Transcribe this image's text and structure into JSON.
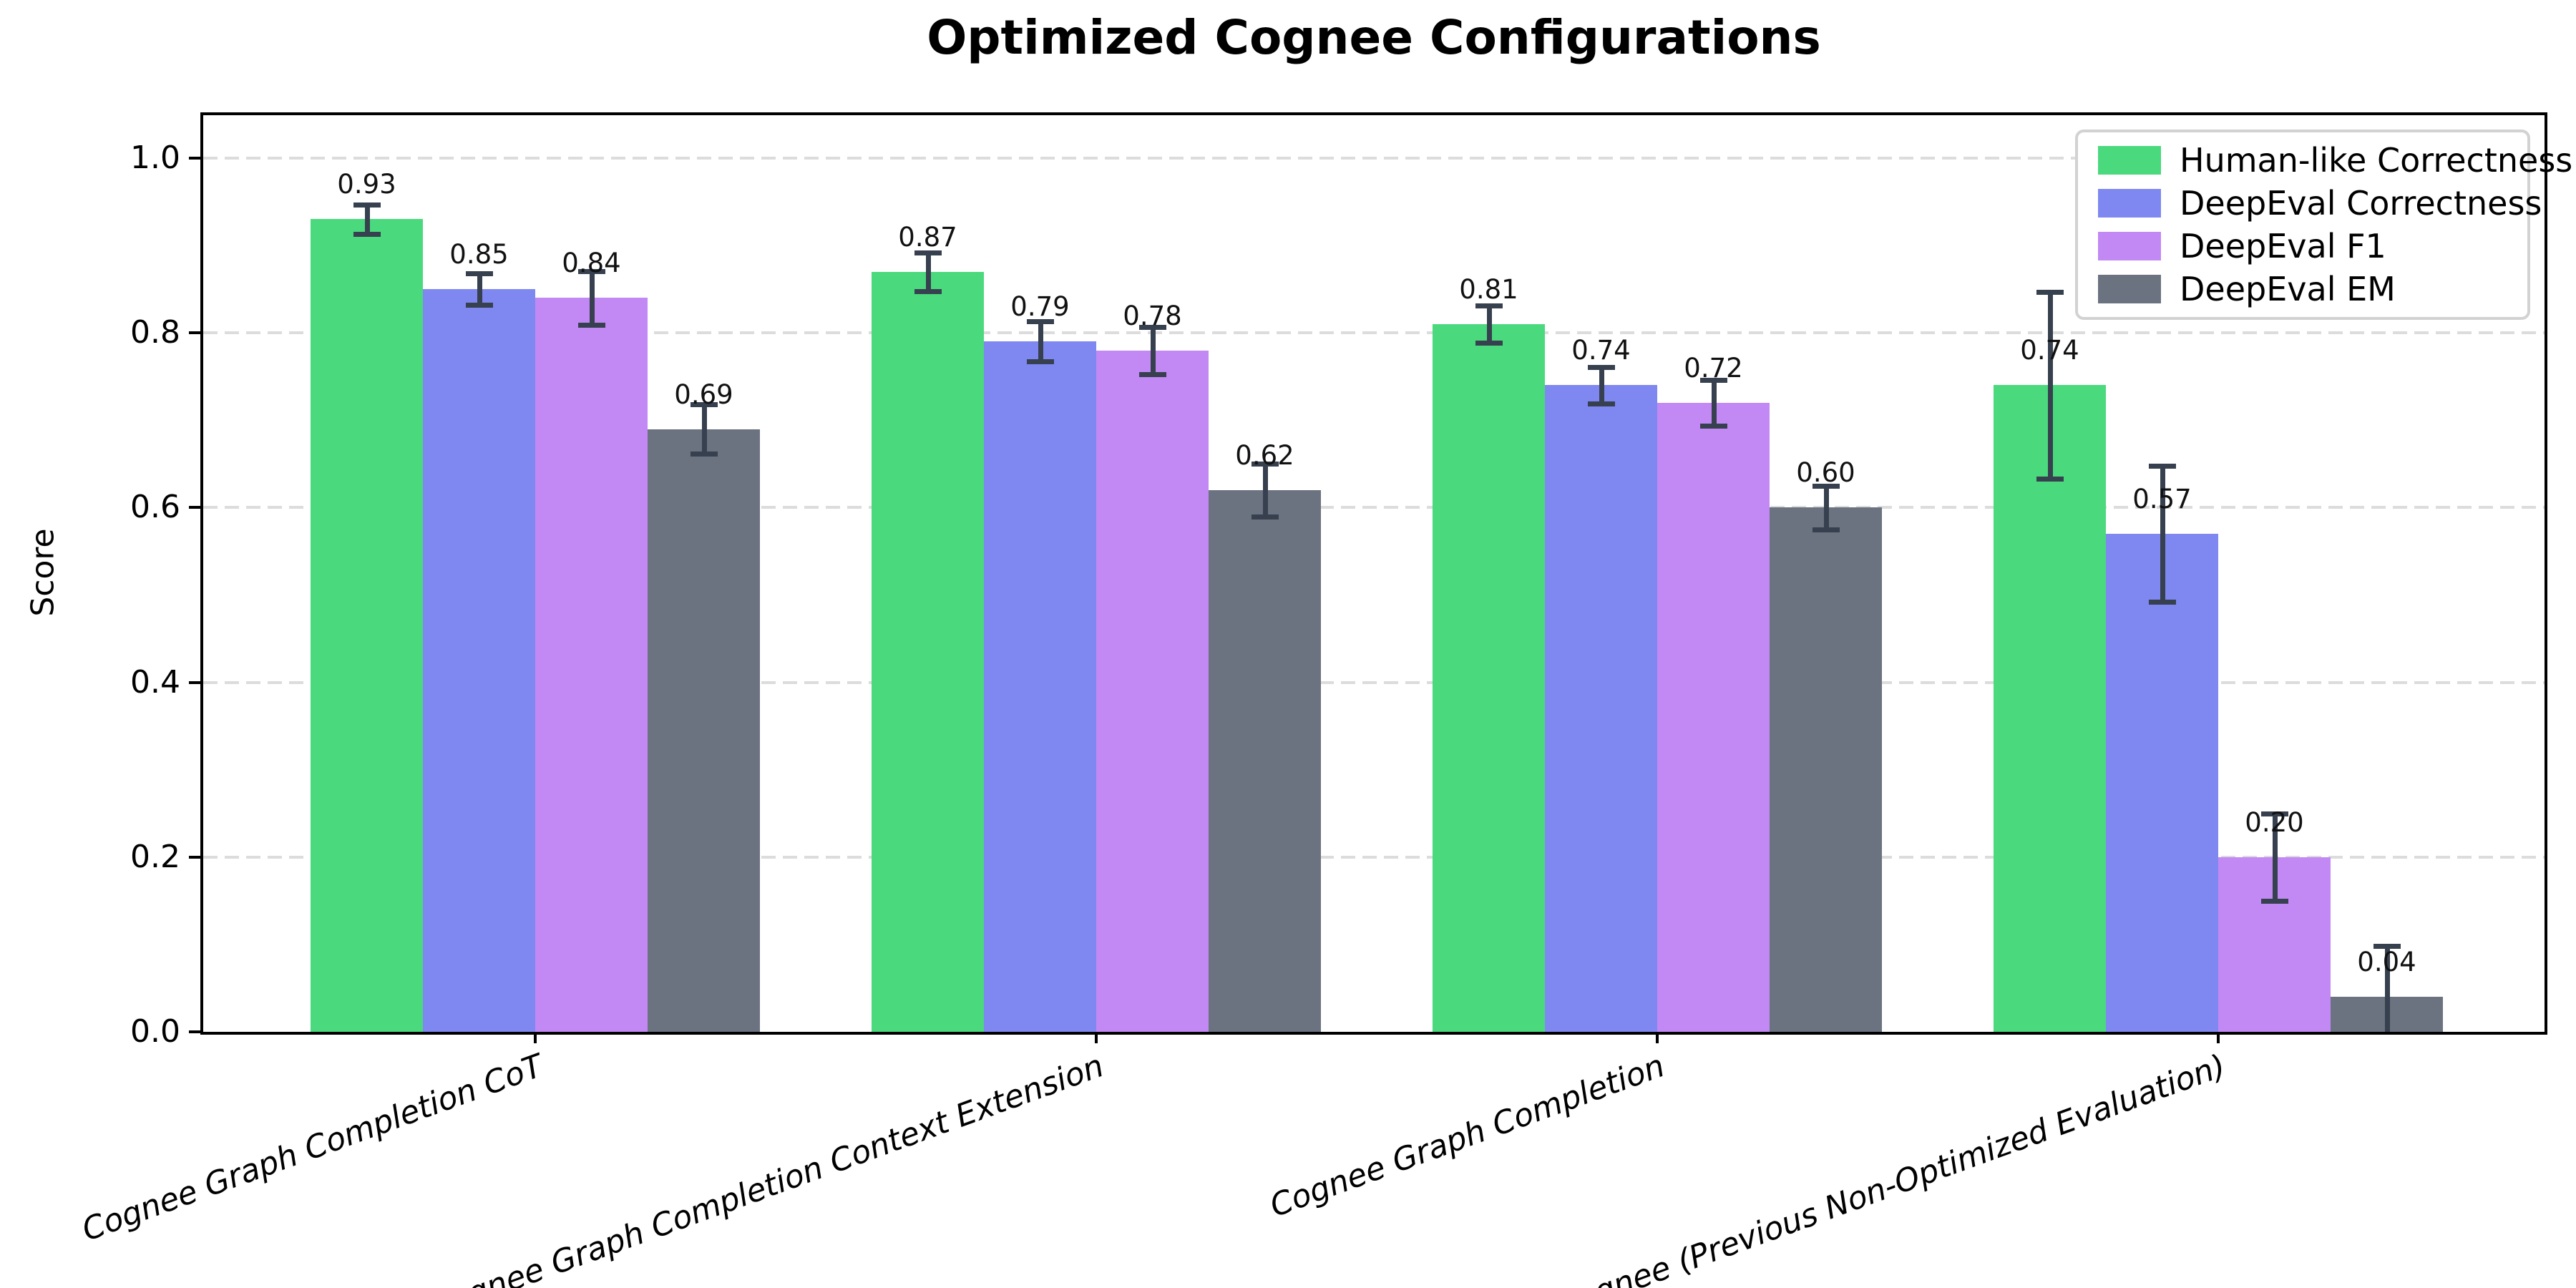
{
  "title": "Optimized Cognee Configurations",
  "chart_data": {
    "type": "bar",
    "title": "Optimized Cognee Configurations",
    "xlabel": "",
    "ylabel": "Score",
    "ylim": [
      0,
      1.05
    ],
    "grid": "horizontal-dashed",
    "legend_position": "upper-right",
    "bar_label_decimals": 2,
    "categories": [
      "Cognee Graph Completion CoT",
      "Cognee Graph Completion Context Extension",
      "Cognee Graph Completion",
      "Cognee (Previous Non-Optimized Evaluation)"
    ],
    "series": [
      {
        "name": "Human-like Correctness",
        "color": "#4bd97e",
        "values": [
          0.93,
          0.87,
          0.81,
          0.74
        ],
        "errors": [
          0.017,
          0.022,
          0.021,
          0.107
        ]
      },
      {
        "name": "DeepEval Correctness",
        "color": "#7e88f0",
        "values": [
          0.85,
          0.79,
          0.74,
          0.57
        ],
        "errors": [
          0.018,
          0.023,
          0.021,
          0.078
        ]
      },
      {
        "name": "DeepEval F1",
        "color": "#c289f4",
        "values": [
          0.84,
          0.78,
          0.72,
          0.2
        ],
        "errors": [
          0.031,
          0.027,
          0.026,
          0.05
        ]
      },
      {
        "name": "DeepEval EM",
        "color": "#6b7280",
        "values": [
          0.69,
          0.62,
          0.6,
          0.04
        ],
        "errors": [
          0.028,
          0.03,
          0.025,
          0.058
        ]
      }
    ],
    "yticks": [
      {
        "value": 0.0,
        "label": "0.0"
      },
      {
        "value": 0.2,
        "label": "0.2"
      },
      {
        "value": 0.4,
        "label": "0.4"
      },
      {
        "value": 0.6,
        "label": "0.6"
      },
      {
        "value": 0.8,
        "label": "0.8"
      },
      {
        "value": 1.0,
        "label": "1.0"
      }
    ]
  },
  "colors": {
    "error_bar": "#36404e",
    "grid": "#dcdcdc",
    "spine": "#000000",
    "background": "#ffffff",
    "bar_label_text": "#111111"
  }
}
